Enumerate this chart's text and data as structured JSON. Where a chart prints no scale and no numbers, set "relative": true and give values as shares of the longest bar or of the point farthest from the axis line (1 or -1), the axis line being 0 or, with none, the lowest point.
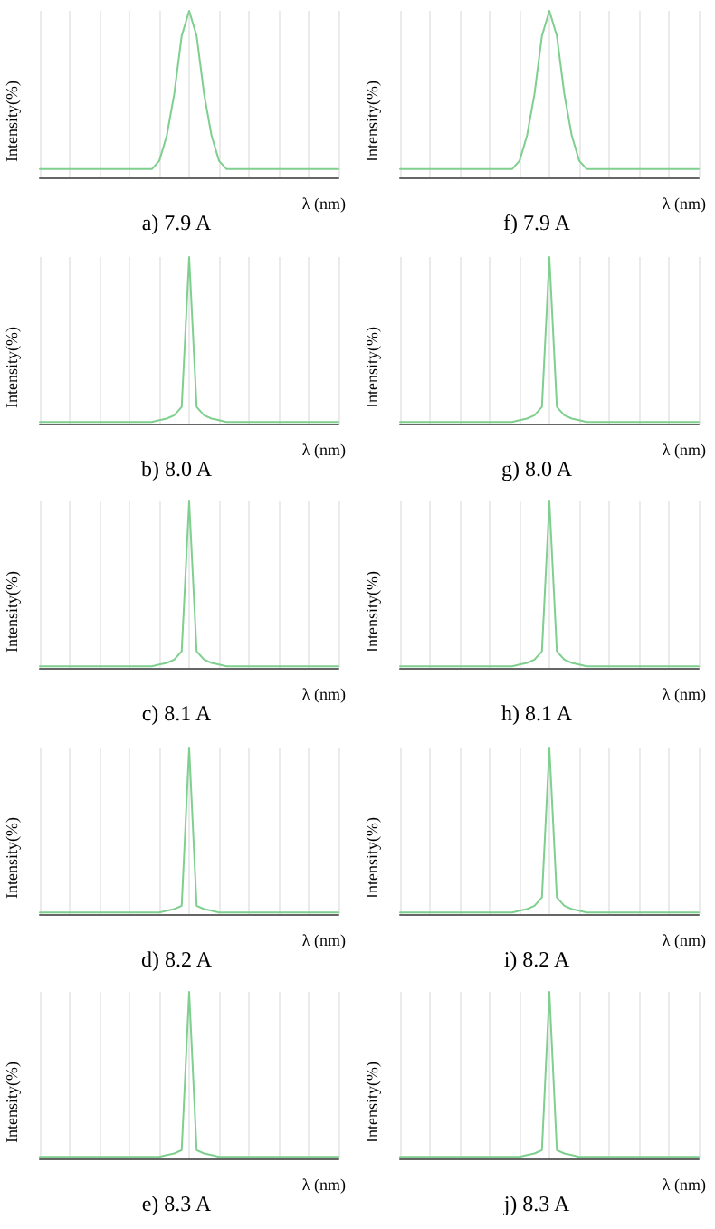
{
  "chart_data": [
    {
      "type": "line",
      "title": "a) 7.9 A",
      "ylabel": "Intensity(%)",
      "xlabel": "λ (nm)",
      "relative": true,
      "grid": "x",
      "categories": [
        null,
        null,
        null,
        null,
        null,
        null,
        null,
        null,
        null,
        null,
        null,
        null,
        null,
        null,
        null,
        null,
        null,
        null,
        null,
        null,
        null,
        null,
        null,
        null,
        null,
        null,
        null,
        null,
        null,
        null,
        null,
        null,
        null,
        null,
        null,
        null,
        null,
        null,
        null,
        null,
        null
      ],
      "series": [
        {
          "color": "#7fcf8f",
          "values": [
            0.05,
            0.05,
            0.05,
            0.05,
            0.05,
            0.05,
            0.05,
            0.05,
            0.05,
            0.05,
            0.05,
            0.05,
            0.05,
            0.05,
            0.05,
            0.05,
            0.1,
            0.25,
            0.5,
            0.85,
            1,
            0.85,
            0.5,
            0.25,
            0.1,
            0.05,
            0.05,
            0.05,
            0.05,
            0.05,
            0.05,
            0.05,
            0.05,
            0.05,
            0.05,
            0.05,
            0.05,
            0.05,
            0.05,
            0.05,
            0.05
          ]
        }
      ]
    },
    {
      "type": "line",
      "title": "f) 7.9 A",
      "ylabel": "Intensity(%)",
      "xlabel": "λ (nm)",
      "relative": true,
      "grid": "x",
      "categories": [
        null,
        null,
        null,
        null,
        null,
        null,
        null,
        null,
        null,
        null,
        null,
        null,
        null,
        null,
        null,
        null,
        null,
        null,
        null,
        null,
        null,
        null,
        null,
        null,
        null,
        null,
        null,
        null,
        null,
        null,
        null,
        null,
        null,
        null,
        null,
        null,
        null,
        null,
        null,
        null,
        null
      ],
      "series": [
        {
          "color": "#7fcf8f",
          "values": [
            0.05,
            0.05,
            0.05,
            0.05,
            0.05,
            0.05,
            0.05,
            0.05,
            0.05,
            0.05,
            0.05,
            0.05,
            0.05,
            0.05,
            0.05,
            0.05,
            0.1,
            0.25,
            0.5,
            0.85,
            1,
            0.85,
            0.5,
            0.25,
            0.1,
            0.05,
            0.05,
            0.05,
            0.05,
            0.05,
            0.05,
            0.05,
            0.05,
            0.05,
            0.05,
            0.05,
            0.05,
            0.05,
            0.05,
            0.05,
            0.05
          ]
        }
      ]
    },
    {
      "type": "line",
      "title": "b) 8.0 A",
      "ylabel": "Intensity(%)",
      "xlabel": "λ (nm)",
      "relative": true,
      "grid": "x",
      "categories": [
        null,
        null,
        null,
        null,
        null,
        null,
        null,
        null,
        null,
        null,
        null,
        null,
        null,
        null,
        null,
        null,
        null,
        null,
        null,
        null,
        null,
        null,
        null,
        null,
        null,
        null,
        null,
        null,
        null,
        null,
        null,
        null,
        null,
        null,
        null,
        null,
        null,
        null,
        null,
        null,
        null
      ],
      "series": [
        {
          "color": "#7fcf8f",
          "values": [
            0.01,
            0.01,
            0.01,
            0.01,
            0.01,
            0.01,
            0.01,
            0.01,
            0.01,
            0.01,
            0.01,
            0.01,
            0.01,
            0.01,
            0.01,
            0.01,
            0.02,
            0.03,
            0.05,
            0.1,
            1,
            0.1,
            0.05,
            0.03,
            0.02,
            0.01,
            0.01,
            0.01,
            0.01,
            0.01,
            0.01,
            0.01,
            0.01,
            0.01,
            0.01,
            0.01,
            0.01,
            0.01,
            0.01,
            0.01,
            0.01
          ]
        }
      ]
    },
    {
      "type": "line",
      "title": "g) 8.0 A",
      "ylabel": "Intensity(%)",
      "xlabel": "λ (nm)",
      "relative": true,
      "grid": "x",
      "categories": [
        null,
        null,
        null,
        null,
        null,
        null,
        null,
        null,
        null,
        null,
        null,
        null,
        null,
        null,
        null,
        null,
        null,
        null,
        null,
        null,
        null,
        null,
        null,
        null,
        null,
        null,
        null,
        null,
        null,
        null,
        null,
        null,
        null,
        null,
        null,
        null,
        null,
        null,
        null,
        null,
        null
      ],
      "series": [
        {
          "color": "#7fcf8f",
          "values": [
            0.01,
            0.01,
            0.01,
            0.01,
            0.01,
            0.01,
            0.01,
            0.01,
            0.01,
            0.01,
            0.01,
            0.01,
            0.01,
            0.01,
            0.01,
            0.01,
            0.02,
            0.03,
            0.05,
            0.1,
            1,
            0.1,
            0.05,
            0.03,
            0.02,
            0.01,
            0.01,
            0.01,
            0.01,
            0.01,
            0.01,
            0.01,
            0.01,
            0.01,
            0.01,
            0.01,
            0.01,
            0.01,
            0.01,
            0.01,
            0.01
          ]
        }
      ]
    },
    {
      "type": "line",
      "title": "c) 8.1 A",
      "ylabel": "Intensity(%)",
      "xlabel": "λ (nm)",
      "relative": true,
      "grid": "x",
      "categories": [
        null,
        null,
        null,
        null,
        null,
        null,
        null,
        null,
        null,
        null,
        null,
        null,
        null,
        null,
        null,
        null,
        null,
        null,
        null,
        null,
        null,
        null,
        null,
        null,
        null,
        null,
        null,
        null,
        null,
        null,
        null,
        null,
        null,
        null,
        null,
        null,
        null,
        null,
        null,
        null,
        null
      ],
      "series": [
        {
          "color": "#7fcf8f",
          "values": [
            0.01,
            0.01,
            0.01,
            0.01,
            0.01,
            0.01,
            0.01,
            0.01,
            0.01,
            0.01,
            0.01,
            0.01,
            0.01,
            0.01,
            0.01,
            0.01,
            0.02,
            0.03,
            0.05,
            0.1,
            1,
            0.1,
            0.05,
            0.03,
            0.02,
            0.01,
            0.01,
            0.01,
            0.01,
            0.01,
            0.01,
            0.01,
            0.01,
            0.01,
            0.01,
            0.01,
            0.01,
            0.01,
            0.01,
            0.01,
            0.01
          ]
        }
      ]
    },
    {
      "type": "line",
      "title": "h) 8.1 A",
      "ylabel": "Intensity(%)",
      "xlabel": "λ (nm)",
      "relative": true,
      "grid": "x",
      "categories": [
        null,
        null,
        null,
        null,
        null,
        null,
        null,
        null,
        null,
        null,
        null,
        null,
        null,
        null,
        null,
        null,
        null,
        null,
        null,
        null,
        null,
        null,
        null,
        null,
        null,
        null,
        null,
        null,
        null,
        null,
        null,
        null,
        null,
        null,
        null,
        null,
        null,
        null,
        null,
        null,
        null
      ],
      "series": [
        {
          "color": "#7fcf8f",
          "values": [
            0.01,
            0.01,
            0.01,
            0.01,
            0.01,
            0.01,
            0.01,
            0.01,
            0.01,
            0.01,
            0.01,
            0.01,
            0.01,
            0.01,
            0.01,
            0.01,
            0.02,
            0.03,
            0.05,
            0.1,
            1,
            0.1,
            0.05,
            0.03,
            0.02,
            0.01,
            0.01,
            0.01,
            0.01,
            0.01,
            0.01,
            0.01,
            0.01,
            0.01,
            0.01,
            0.01,
            0.01,
            0.01,
            0.01,
            0.01,
            0.01
          ]
        }
      ]
    },
    {
      "type": "line",
      "title": "d) 8.2 A",
      "ylabel": "Intensity(%)",
      "xlabel": "λ (nm)",
      "relative": true,
      "grid": "x",
      "categories": [
        null,
        null,
        null,
        null,
        null,
        null,
        null,
        null,
        null,
        null,
        null,
        null,
        null,
        null,
        null,
        null,
        null,
        null,
        null,
        null,
        null,
        null,
        null,
        null,
        null,
        null,
        null,
        null,
        null,
        null,
        null,
        null,
        null,
        null,
        null,
        null,
        null,
        null,
        null,
        null,
        null
      ],
      "series": [
        {
          "color": "#7fcf8f",
          "values": [
            0.01,
            0.01,
            0.01,
            0.01,
            0.01,
            0.01,
            0.01,
            0.01,
            0.01,
            0.01,
            0.01,
            0.01,
            0.01,
            0.01,
            0.01,
            0.01,
            0.01,
            0.02,
            0.03,
            0.05,
            1,
            0.05,
            0.03,
            0.02,
            0.01,
            0.01,
            0.01,
            0.01,
            0.01,
            0.01,
            0.01,
            0.01,
            0.01,
            0.01,
            0.01,
            0.01,
            0.01,
            0.01,
            0.01,
            0.01,
            0.01
          ]
        }
      ]
    },
    {
      "type": "line",
      "title": "i) 8.2 A",
      "ylabel": "Intensity(%)",
      "xlabel": "λ (nm)",
      "relative": true,
      "grid": "x",
      "categories": [
        null,
        null,
        null,
        null,
        null,
        null,
        null,
        null,
        null,
        null,
        null,
        null,
        null,
        null,
        null,
        null,
        null,
        null,
        null,
        null,
        null,
        null,
        null,
        null,
        null,
        null,
        null,
        null,
        null,
        null,
        null,
        null,
        null,
        null,
        null,
        null,
        null,
        null,
        null,
        null,
        null
      ],
      "series": [
        {
          "color": "#7fcf8f",
          "values": [
            0.01,
            0.01,
            0.01,
            0.01,
            0.01,
            0.01,
            0.01,
            0.01,
            0.01,
            0.01,
            0.01,
            0.01,
            0.01,
            0.01,
            0.01,
            0.01,
            0.02,
            0.03,
            0.05,
            0.1,
            1,
            0.1,
            0.05,
            0.03,
            0.02,
            0.01,
            0.01,
            0.01,
            0.01,
            0.01,
            0.01,
            0.01,
            0.01,
            0.01,
            0.01,
            0.01,
            0.01,
            0.01,
            0.01,
            0.01,
            0.01
          ]
        }
      ]
    },
    {
      "type": "line",
      "title": "e) 8.3 A",
      "ylabel": "Intensity(%)",
      "xlabel": "λ (nm)",
      "relative": true,
      "grid": "x",
      "categories": [
        null,
        null,
        null,
        null,
        null,
        null,
        null,
        null,
        null,
        null,
        null,
        null,
        null,
        null,
        null,
        null,
        null,
        null,
        null,
        null,
        null,
        null,
        null,
        null,
        null,
        null,
        null,
        null,
        null,
        null,
        null,
        null,
        null,
        null,
        null,
        null,
        null,
        null,
        null,
        null,
        null
      ],
      "series": [
        {
          "color": "#7fcf8f",
          "values": [
            0.01,
            0.01,
            0.01,
            0.01,
            0.01,
            0.01,
            0.01,
            0.01,
            0.01,
            0.01,
            0.01,
            0.01,
            0.01,
            0.01,
            0.01,
            0.01,
            0.01,
            0.02,
            0.03,
            0.05,
            1,
            0.05,
            0.03,
            0.02,
            0.01,
            0.01,
            0.01,
            0.01,
            0.01,
            0.01,
            0.01,
            0.01,
            0.01,
            0.01,
            0.01,
            0.01,
            0.01,
            0.01,
            0.01,
            0.01,
            0.01
          ]
        }
      ]
    },
    {
      "type": "line",
      "title": "j) 8.3 A",
      "ylabel": "Intensity(%)",
      "xlabel": "λ (nm)",
      "relative": true,
      "grid": "x",
      "categories": [
        null,
        null,
        null,
        null,
        null,
        null,
        null,
        null,
        null,
        null,
        null,
        null,
        null,
        null,
        null,
        null,
        null,
        null,
        null,
        null,
        null,
        null,
        null,
        null,
        null,
        null,
        null,
        null,
        null,
        null,
        null,
        null,
        null,
        null,
        null,
        null,
        null,
        null,
        null,
        null,
        null
      ],
      "series": [
        {
          "color": "#7fcf8f",
          "values": [
            0.01,
            0.01,
            0.01,
            0.01,
            0.01,
            0.01,
            0.01,
            0.01,
            0.01,
            0.01,
            0.01,
            0.01,
            0.01,
            0.01,
            0.01,
            0.01,
            0.01,
            0.02,
            0.03,
            0.05,
            1,
            0.05,
            0.03,
            0.02,
            0.01,
            0.01,
            0.01,
            0.01,
            0.01,
            0.01,
            0.01,
            0.01,
            0.01,
            0.01,
            0.01,
            0.01,
            0.01,
            0.01,
            0.01,
            0.01,
            0.01
          ]
        }
      ]
    }
  ]
}
